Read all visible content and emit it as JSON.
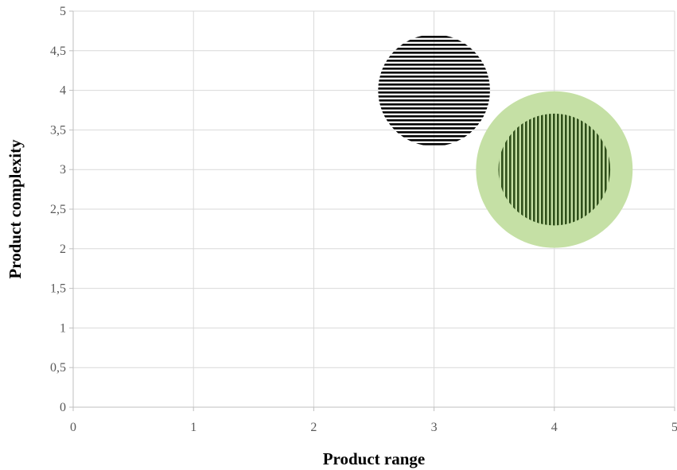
{
  "chart_data": {
    "type": "bubble",
    "title": "",
    "xlabel": "Product range",
    "ylabel": "Product complexity",
    "xlim": [
      0,
      5
    ],
    "ylim": [
      0,
      5
    ],
    "x_ticks": [
      "0",
      "1",
      "2",
      "3",
      "4",
      "5"
    ],
    "y_ticks": [
      "0",
      "0,5",
      "1",
      "1,5",
      "2",
      "2,5",
      "3",
      "3,5",
      "4",
      "4,5",
      "5"
    ],
    "grid": true,
    "legend": "none",
    "bubbles": [
      {
        "x": 4,
        "y": 3,
        "radius": 0.7,
        "fill": "green-solid",
        "color": "#c5e0a5"
      },
      {
        "x": 3,
        "y": 4,
        "radius": 0.5,
        "fill": "horizontal-stripes",
        "color": "#000000"
      },
      {
        "x": 4,
        "y": 3,
        "radius": 0.5,
        "fill": "vertical-stripes",
        "color": "#375623"
      }
    ]
  }
}
